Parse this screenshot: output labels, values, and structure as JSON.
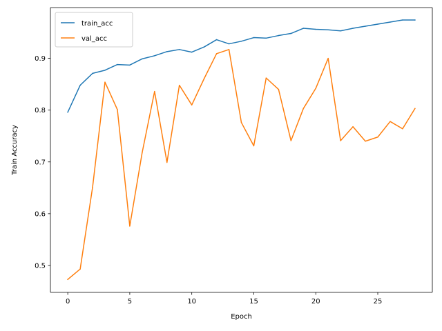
{
  "chart_data": {
    "type": "line",
    "title": "",
    "xlabel": "Epoch",
    "ylabel": "Train Accuracy",
    "xlim": [
      -1.4,
      29.4
    ],
    "ylim": [
      0.448,
      0.998
    ],
    "xticks": [
      0,
      5,
      10,
      15,
      20,
      25
    ],
    "yticks": [
      0.5,
      0.6,
      0.7,
      0.8,
      0.9
    ],
    "grid": false,
    "legend": "top-left",
    "x": [
      0,
      1,
      2,
      3,
      4,
      5,
      6,
      7,
      8,
      9,
      10,
      11,
      12,
      13,
      14,
      15,
      16,
      17,
      18,
      19,
      20,
      21,
      22,
      23,
      24,
      25,
      26,
      27,
      28
    ],
    "series": [
      {
        "name": "train_acc",
        "color": "#1f77b4",
        "values": [
          0.796,
          0.848,
          0.871,
          0.877,
          0.888,
          0.887,
          0.899,
          0.905,
          0.913,
          0.917,
          0.912,
          0.922,
          0.936,
          0.928,
          0.933,
          0.94,
          0.939,
          0.944,
          0.948,
          0.958,
          0.956,
          0.955,
          0.953,
          0.958,
          0.962,
          0.966,
          0.97,
          0.974,
          0.974
        ]
      },
      {
        "name": "val_acc",
        "color": "#ff7f0e",
        "values": [
          0.473,
          0.493,
          0.651,
          0.854,
          0.801,
          0.576,
          0.718,
          0.836,
          0.699,
          0.848,
          0.81,
          0.861,
          0.909,
          0.917,
          0.776,
          0.731,
          0.862,
          0.84,
          0.741,
          0.803,
          0.842,
          0.9,
          0.741,
          0.768,
          0.74,
          0.748,
          0.778,
          0.764,
          0.803
        ]
      }
    ]
  }
}
